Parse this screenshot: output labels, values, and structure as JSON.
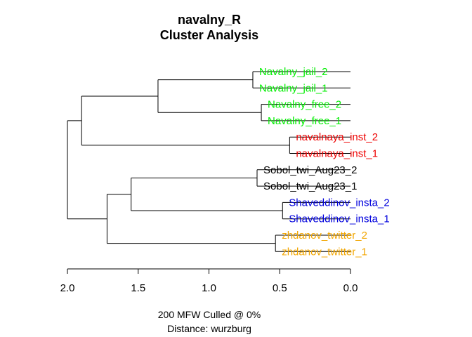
{
  "chart_data": {
    "type": "dendrogram",
    "title": "navalny_R",
    "subtitle": "Cluster Analysis",
    "caption_line1": "200 MFW  Culled @ 0%",
    "caption_line2": "Distance: wurzburg",
    "xlim": [
      2.0,
      0.0
    ],
    "ticks": [
      {
        "value": 2.0,
        "label": "2.0"
      },
      {
        "value": 1.5,
        "label": "1.5"
      },
      {
        "value": 1.0,
        "label": "1.0"
      },
      {
        "value": 0.5,
        "label": "0.5"
      },
      {
        "value": 0.0,
        "label": "0.0"
      }
    ],
    "leaves": [
      {
        "id": "l1",
        "label": "Navalny_jail_2",
        "color": "#00ee00"
      },
      {
        "id": "l2",
        "label": "Navalny_jail_1",
        "color": "#00ee00"
      },
      {
        "id": "l3",
        "label": "Navalny_free_2",
        "color": "#00ee00"
      },
      {
        "id": "l4",
        "label": "Navalny_free_1",
        "color": "#00ee00"
      },
      {
        "id": "l5",
        "label": "navalnaya_inst_2",
        "color": "#ee0000"
      },
      {
        "id": "l6",
        "label": "navalnaya_inst_1",
        "color": "#ee0000"
      },
      {
        "id": "l7",
        "label": "Sobol_twi_Aug23_2",
        "color": "#000000"
      },
      {
        "id": "l8",
        "label": "Sobol_twi_Aug23_1",
        "color": "#000000"
      },
      {
        "id": "l9",
        "label": "Shaveddinov_insta_2",
        "color": "#0000dd"
      },
      {
        "id": "l10",
        "label": "Shaveddinov_insta_1",
        "color": "#0000dd"
      },
      {
        "id": "l11",
        "label": "zhdanov_twitter_2",
        "color": "#f2a600"
      },
      {
        "id": "l12",
        "label": "zhdanov_twitter_1",
        "color": "#f2a600"
      }
    ],
    "merges": [
      {
        "id": "m_jail",
        "height": 0.69,
        "children": [
          "l1",
          "l2"
        ]
      },
      {
        "id": "m_free",
        "height": 0.63,
        "children": [
          "l3",
          "l4"
        ]
      },
      {
        "id": "m_inst",
        "height": 0.43,
        "children": [
          "l5",
          "l6"
        ]
      },
      {
        "id": "m_sobol",
        "height": 0.66,
        "children": [
          "l7",
          "l8"
        ]
      },
      {
        "id": "m_shav",
        "height": 0.48,
        "children": [
          "l9",
          "l10"
        ]
      },
      {
        "id": "m_zhd",
        "height": 0.53,
        "children": [
          "l11",
          "l12"
        ]
      },
      {
        "id": "m_navalny",
        "height": 1.36,
        "children": [
          "m_jail",
          "m_free"
        ]
      },
      {
        "id": "m_green_red",
        "height": 1.9,
        "children": [
          "m_navalny",
          "m_inst"
        ]
      },
      {
        "id": "m_sobol_shav",
        "height": 1.55,
        "children": [
          "m_sobol",
          "m_shav"
        ]
      },
      {
        "id": "m_lower",
        "height": 1.72,
        "children": [
          "m_sobol_shav",
          "m_zhd"
        ]
      },
      {
        "id": "m_root",
        "height": 2.0,
        "children": [
          "m_green_red",
          "m_lower"
        ]
      }
    ]
  }
}
